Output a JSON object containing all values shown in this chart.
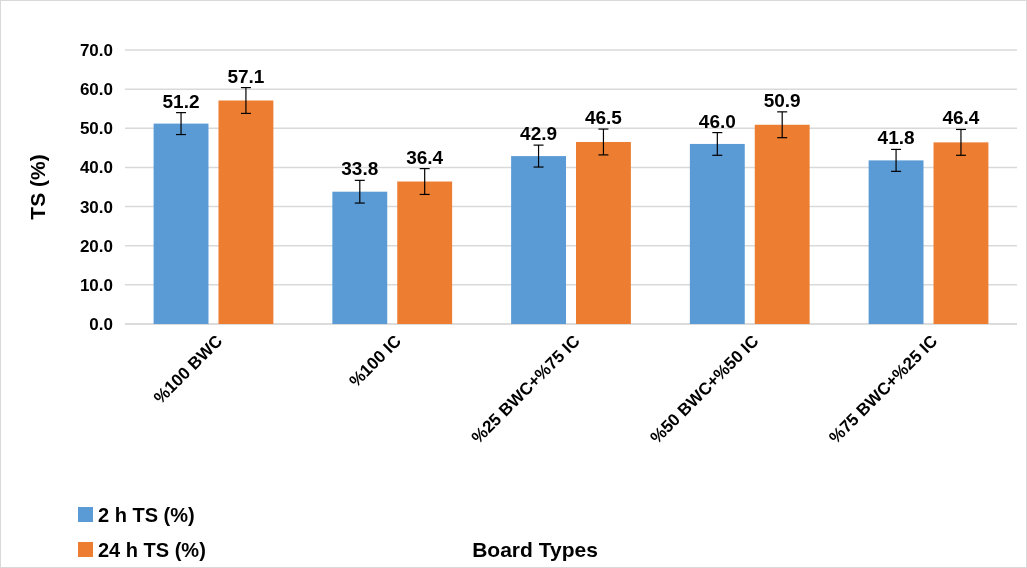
{
  "chart_data": {
    "type": "bar",
    "xlabel": "Board Types",
    "ylabel": "TS (%)",
    "categories": [
      "%100 BWC",
      "%100 IC",
      "%25 BWC+%75 IC",
      "%50 BWC+%50 IC",
      "%75 BWC+%25 IC"
    ],
    "series": [
      {
        "name": "2 h TS (%)",
        "color": "#5b9bd5",
        "values": [
          51.2,
          33.8,
          42.9,
          46.0,
          41.8
        ],
        "errors": [
          2.8,
          2.9,
          2.8,
          2.9,
          2.8
        ],
        "value_labels": [
          "51.2",
          "33.8",
          "42.9",
          "46.0",
          "41.8"
        ]
      },
      {
        "name": "24 h TS (%)",
        "color": "#ed7d31",
        "values": [
          57.1,
          36.4,
          46.5,
          50.9,
          46.4
        ],
        "errors": [
          3.3,
          3.3,
          3.3,
          3.3,
          3.3
        ],
        "value_labels": [
          "57.1",
          "36.4",
          "46.5",
          "50.9",
          "46.4"
        ]
      }
    ],
    "ylim": [
      0,
      70
    ],
    "yticks": [
      {
        "value": 0,
        "label": "0.0"
      },
      {
        "value": 10,
        "label": "10.0"
      },
      {
        "value": 20,
        "label": "20.0"
      },
      {
        "value": 30,
        "label": "30.0"
      },
      {
        "value": 40,
        "label": "40.0"
      },
      {
        "value": 50,
        "label": "50.0"
      },
      {
        "value": 60,
        "label": "60.0"
      },
      {
        "value": 70,
        "label": "70.0"
      }
    ],
    "grid": "y",
    "legend": "bottom left"
  }
}
